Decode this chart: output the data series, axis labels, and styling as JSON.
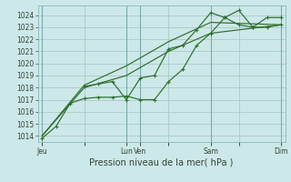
{
  "bg_color": "#cde8e8",
  "grid_color": "#aac8c8",
  "line_color": "#2d6e2d",
  "xlabel": "Pression niveau de la mer( hPa )",
  "ylim": [
    1013.5,
    1024.8
  ],
  "yticks": [
    1014,
    1015,
    1016,
    1017,
    1018,
    1019,
    1020,
    1021,
    1022,
    1023,
    1024
  ],
  "xlim": [
    -0.3,
    17.3
  ],
  "xtick_labels": [
    "Jeu",
    "",
    "Lun",
    "Ven",
    "",
    "Sam",
    "",
    "Dim"
  ],
  "xtick_pos": [
    0,
    3,
    6,
    7,
    9,
    12,
    14,
    17
  ],
  "vline_pos": [
    0,
    6,
    7,
    12,
    17
  ],
  "series1_x": [
    0,
    1,
    2,
    3,
    4,
    5,
    6,
    7,
    8,
    9,
    10,
    11,
    12,
    13,
    14,
    15,
    16,
    17
  ],
  "series1_y": [
    1013.8,
    1014.8,
    1016.7,
    1017.1,
    1017.2,
    1017.2,
    1017.3,
    1017.0,
    1017.0,
    1018.5,
    1019.5,
    1021.5,
    1022.5,
    1023.8,
    1023.2,
    1023.0,
    1023.0,
    1023.2
  ],
  "series2_x": [
    3,
    4,
    5,
    6,
    7,
    8,
    9,
    10,
    11,
    12,
    13,
    14,
    15,
    16,
    17
  ],
  "series2_y": [
    1018.1,
    1018.3,
    1018.5,
    1017.0,
    1018.8,
    1019.0,
    1021.2,
    1021.5,
    1022.8,
    1024.2,
    1023.8,
    1024.4,
    1023.0,
    1023.8,
    1023.8
  ],
  "series3_x": [
    0,
    3,
    6,
    9,
    12,
    17
  ],
  "series3_y": [
    1014.0,
    1018.0,
    1019.0,
    1021.0,
    1022.5,
    1023.2
  ],
  "series4_x": [
    0,
    3,
    6,
    9,
    12,
    17
  ],
  "series4_y": [
    1014.0,
    1018.2,
    1019.8,
    1021.8,
    1023.4,
    1023.2
  ],
  "xlabel_fontsize": 7,
  "ytick_fontsize": 5.5,
  "xtick_fontsize": 5.5,
  "tick_color": "#334433"
}
